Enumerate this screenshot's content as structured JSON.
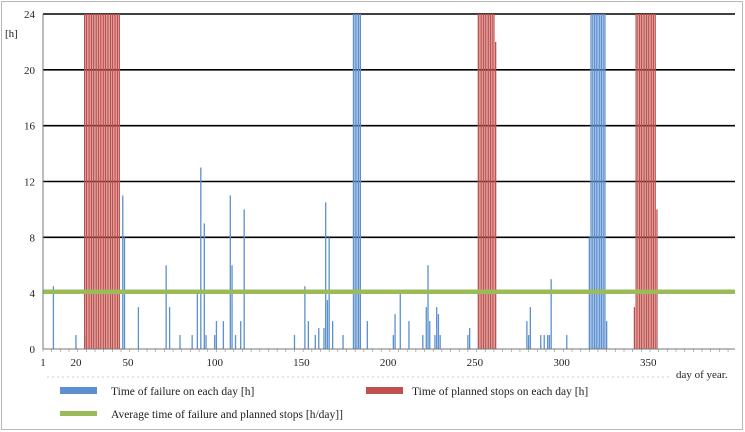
{
  "chart_data": {
    "type": "bar",
    "ylabel": "[h]",
    "xlabel": "day of year.",
    "xlim": [
      1,
      400
    ],
    "ylim": [
      0,
      24
    ],
    "yticks": [
      "0",
      "4",
      "8",
      "12",
      "16",
      "20",
      "24"
    ],
    "xticks": [
      "1",
      "20",
      "50",
      "100",
      "150",
      "200",
      "250",
      "300",
      "350"
    ],
    "xtick_values": [
      1,
      20,
      50,
      100,
      150,
      200,
      250,
      300,
      350
    ],
    "grid": true,
    "legend_position": "bottom",
    "series": [
      {
        "name": "Time of failure on each day [h]",
        "color": "#5b8fd0",
        "points": [
          [
            7,
            4.5
          ],
          [
            20,
            1
          ],
          [
            26,
            1
          ],
          [
            47,
            11
          ],
          [
            48,
            8
          ],
          [
            56,
            3
          ],
          [
            72,
            6
          ],
          [
            74,
            3
          ],
          [
            80,
            1
          ],
          [
            87,
            1
          ],
          [
            90,
            4
          ],
          [
            92,
            13
          ],
          [
            94,
            9
          ],
          [
            95,
            1
          ],
          [
            100,
            1
          ],
          [
            101,
            2
          ],
          [
            105,
            2
          ],
          [
            109,
            11
          ],
          [
            110,
            6
          ],
          [
            112,
            1
          ],
          [
            115,
            2
          ],
          [
            117,
            10
          ],
          [
            146,
            1
          ],
          [
            152,
            4.5
          ],
          [
            154,
            2
          ],
          [
            158,
            1
          ],
          [
            160,
            1.5
          ],
          [
            163,
            1.5
          ],
          [
            164,
            10.5
          ],
          [
            165,
            3.5
          ],
          [
            166,
            8
          ],
          [
            168,
            2
          ],
          [
            174,
            1
          ],
          [
            180,
            24
          ],
          [
            181,
            24
          ],
          [
            182,
            24
          ],
          [
            183,
            24
          ],
          [
            184,
            24
          ],
          [
            188,
            2
          ],
          [
            203,
            1
          ],
          [
            204,
            2.5
          ],
          [
            207,
            4
          ],
          [
            212,
            2
          ],
          [
            220,
            1
          ],
          [
            222,
            3
          ],
          [
            223,
            6
          ],
          [
            224,
            2
          ],
          [
            227,
            1
          ],
          [
            228,
            3
          ],
          [
            229,
            2.5
          ],
          [
            230,
            1
          ],
          [
            246,
            1
          ],
          [
            247,
            1.5
          ],
          [
            280,
            2
          ],
          [
            281,
            1
          ],
          [
            282,
            3
          ],
          [
            288,
            1
          ],
          [
            290,
            1
          ],
          [
            292,
            1
          ],
          [
            293,
            1
          ],
          [
            294,
            5
          ],
          [
            303,
            1
          ],
          [
            316,
            8
          ],
          [
            317,
            24
          ],
          [
            318,
            24
          ],
          [
            319,
            24
          ],
          [
            320,
            24
          ],
          [
            321,
            24
          ],
          [
            322,
            24
          ],
          [
            323,
            24
          ],
          [
            324,
            24
          ],
          [
            325,
            24
          ],
          [
            326,
            2
          ]
        ]
      },
      {
        "name": "Time of planned stops on each day [h]",
        "color": "#c0504d",
        "points": [
          [
            25,
            24
          ],
          [
            26,
            24
          ],
          [
            27,
            24
          ],
          [
            28,
            24
          ],
          [
            29,
            24
          ],
          [
            30,
            24
          ],
          [
            31,
            24
          ],
          [
            32,
            24
          ],
          [
            33,
            24
          ],
          [
            34,
            24
          ],
          [
            35,
            24
          ],
          [
            36,
            24
          ],
          [
            37,
            24
          ],
          [
            38,
            24
          ],
          [
            39,
            24
          ],
          [
            40,
            24
          ],
          [
            41,
            24
          ],
          [
            42,
            24
          ],
          [
            43,
            24
          ],
          [
            44,
            24
          ],
          [
            45,
            24
          ],
          [
            252,
            24
          ],
          [
            253,
            24
          ],
          [
            254,
            24
          ],
          [
            255,
            24
          ],
          [
            256,
            24
          ],
          [
            257,
            24
          ],
          [
            258,
            24
          ],
          [
            259,
            24
          ],
          [
            260,
            24
          ],
          [
            261,
            24
          ],
          [
            262,
            22
          ],
          [
            342,
            3
          ],
          [
            343,
            24
          ],
          [
            344,
            24
          ],
          [
            345,
            24
          ],
          [
            346,
            24
          ],
          [
            347,
            24
          ],
          [
            348,
            24
          ],
          [
            349,
            24
          ],
          [
            350,
            24
          ],
          [
            351,
            24
          ],
          [
            352,
            24
          ],
          [
            353,
            24
          ],
          [
            354,
            24
          ],
          [
            355,
            10
          ]
        ]
      },
      {
        "name": "Average time of failure and planned stops [h/day]]",
        "color": "#9bbb59",
        "type": "line",
        "value": 4.1
      }
    ]
  }
}
